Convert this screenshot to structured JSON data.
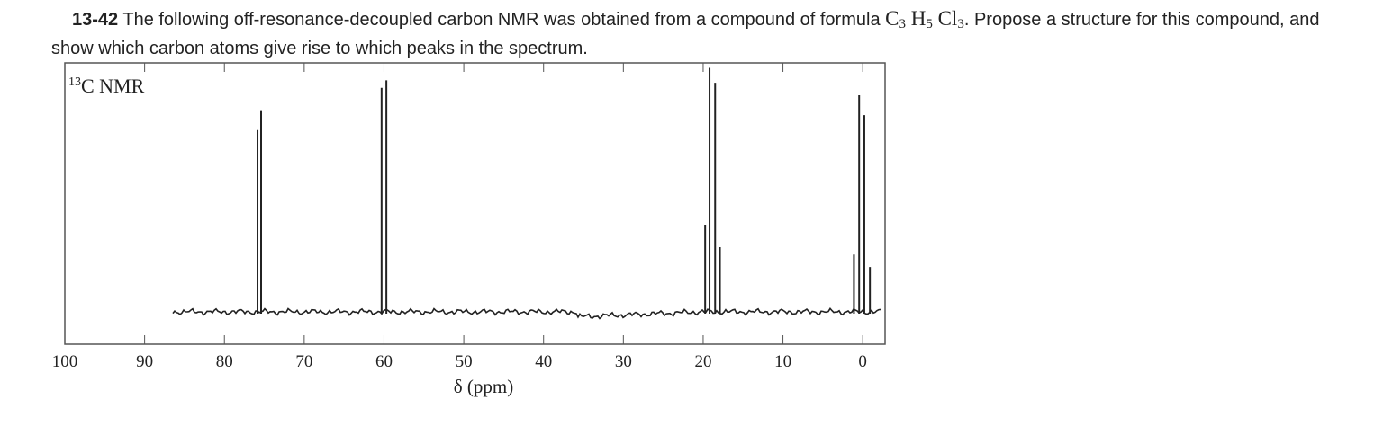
{
  "question": {
    "number": "13-42",
    "text_before": "The following off-resonance-decoupled carbon NMR was obtained from a compound of formula",
    "formula": [
      {
        "symbol": "C",
        "count": "3"
      },
      {
        "symbol": "H",
        "count": "5"
      },
      {
        "symbol": "Cl",
        "count": "3"
      }
    ],
    "text_after": ". Propose a structure for this compound, and show which carbon atoms give rise to which peaks in the spectrum."
  },
  "spectrum": {
    "type": "stick",
    "label": {
      "sup": "13",
      "text": "C NMR"
    },
    "xlabel": "δ (ppm)",
    "xlim": [
      100,
      -2.8
    ],
    "xticks": [
      100,
      90,
      80,
      70,
      60,
      50,
      40,
      30,
      20,
      10,
      0
    ],
    "ylim": [
      0,
      1
    ],
    "color": "#222222",
    "peaks": [
      {
        "ppm": 75.85,
        "height": 0.73
      },
      {
        "ppm": 75.4,
        "height": 0.81
      },
      {
        "ppm": 60.3,
        "height": 0.9
      },
      {
        "ppm": 59.7,
        "height": 0.93
      },
      {
        "ppm": 19.75,
        "height": 0.35
      },
      {
        "ppm": 19.2,
        "height": 0.98
      },
      {
        "ppm": 18.5,
        "height": 0.92
      },
      {
        "ppm": 17.9,
        "height": 0.26
      },
      {
        "ppm": 1.1,
        "height": 0.23
      },
      {
        "ppm": 0.45,
        "height": 0.87
      },
      {
        "ppm": -0.2,
        "height": 0.79
      },
      {
        "ppm": -0.9,
        "height": 0.18
      }
    ]
  }
}
